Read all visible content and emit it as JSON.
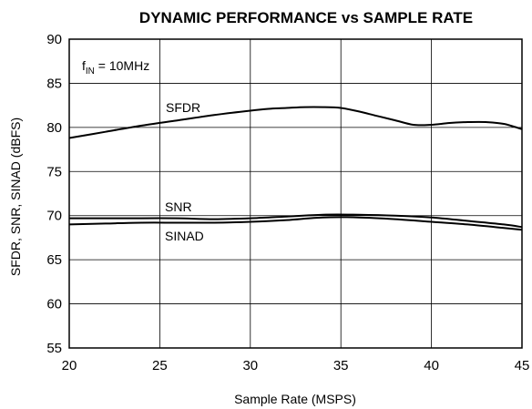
{
  "chart_data": {
    "type": "line",
    "title": "DYNAMIC PERFORMANCE vs SAMPLE RATE",
    "xlabel": "Sample Rate (MSPS)",
    "ylabel": "SFDR, SNR, SINAD (dBFS)",
    "xlim": [
      20,
      45
    ],
    "ylim": [
      55,
      90
    ],
    "xticks": [
      "20",
      "25",
      "30",
      "35",
      "40",
      "45"
    ],
    "yticks": [
      "90",
      "85",
      "80",
      "75",
      "70",
      "65",
      "60",
      "55"
    ],
    "grid": true,
    "annotation": {
      "main": "f",
      "sub": "IN",
      "rest": " = 10MHz"
    },
    "series": [
      {
        "name": "SFDR",
        "x": [
          20,
          22,
          24,
          26,
          28,
          30,
          31,
          32,
          33,
          34,
          35,
          36,
          37,
          38,
          39,
          40,
          41,
          42,
          43,
          44,
          45
        ],
        "y": [
          78.8,
          79.5,
          80.2,
          80.8,
          81.4,
          81.9,
          82.1,
          82.2,
          82.3,
          82.3,
          82.2,
          81.8,
          81.3,
          80.8,
          80.3,
          80.3,
          80.5,
          80.6,
          80.6,
          80.4,
          79.8
        ]
      },
      {
        "name": "SNR",
        "x": [
          20,
          22,
          24,
          26,
          28,
          30,
          32,
          34,
          36,
          38,
          40,
          42,
          44,
          45
        ],
        "y": [
          69.7,
          69.7,
          69.7,
          69.7,
          69.6,
          69.7,
          69.9,
          70.1,
          70.1,
          70.0,
          69.8,
          69.4,
          69.0,
          68.7
        ]
      },
      {
        "name": "SINAD",
        "x": [
          20,
          22,
          24,
          26,
          28,
          30,
          32,
          34,
          36,
          38,
          40,
          42,
          44,
          45
        ],
        "y": [
          69.0,
          69.1,
          69.2,
          69.2,
          69.2,
          69.3,
          69.5,
          69.8,
          69.8,
          69.6,
          69.3,
          69.0,
          68.6,
          68.4
        ]
      }
    ]
  }
}
